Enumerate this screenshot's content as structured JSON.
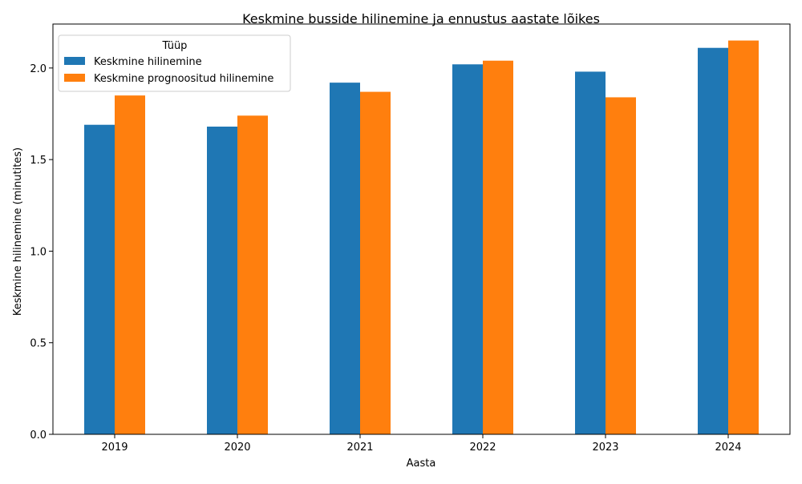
{
  "chart_data": {
    "type": "bar",
    "title": "Keskmine busside hilinemine ja ennustus aastate lõikes",
    "xlabel": "Aasta",
    "ylabel": "Keskmine hilinemine (minutites)",
    "categories": [
      "2019",
      "2020",
      "2021",
      "2022",
      "2023",
      "2024"
    ],
    "series": [
      {
        "name": "Keskmine hilinemine",
        "color": "#1f77b4",
        "values": [
          1.69,
          1.68,
          1.92,
          2.02,
          1.98,
          2.11
        ]
      },
      {
        "name": "Keskmine prognoositud hilinemine",
        "color": "#ff7f0e",
        "values": [
          1.85,
          1.74,
          1.87,
          2.04,
          1.84,
          2.15
        ]
      }
    ],
    "ylim": [
      0,
      2.24
    ],
    "yticks": [
      "0.0",
      "0.5",
      "1.0",
      "1.5",
      "2.0"
    ],
    "legend": {
      "title": "Tüüp",
      "placement": "top-left"
    },
    "grid": false
  }
}
